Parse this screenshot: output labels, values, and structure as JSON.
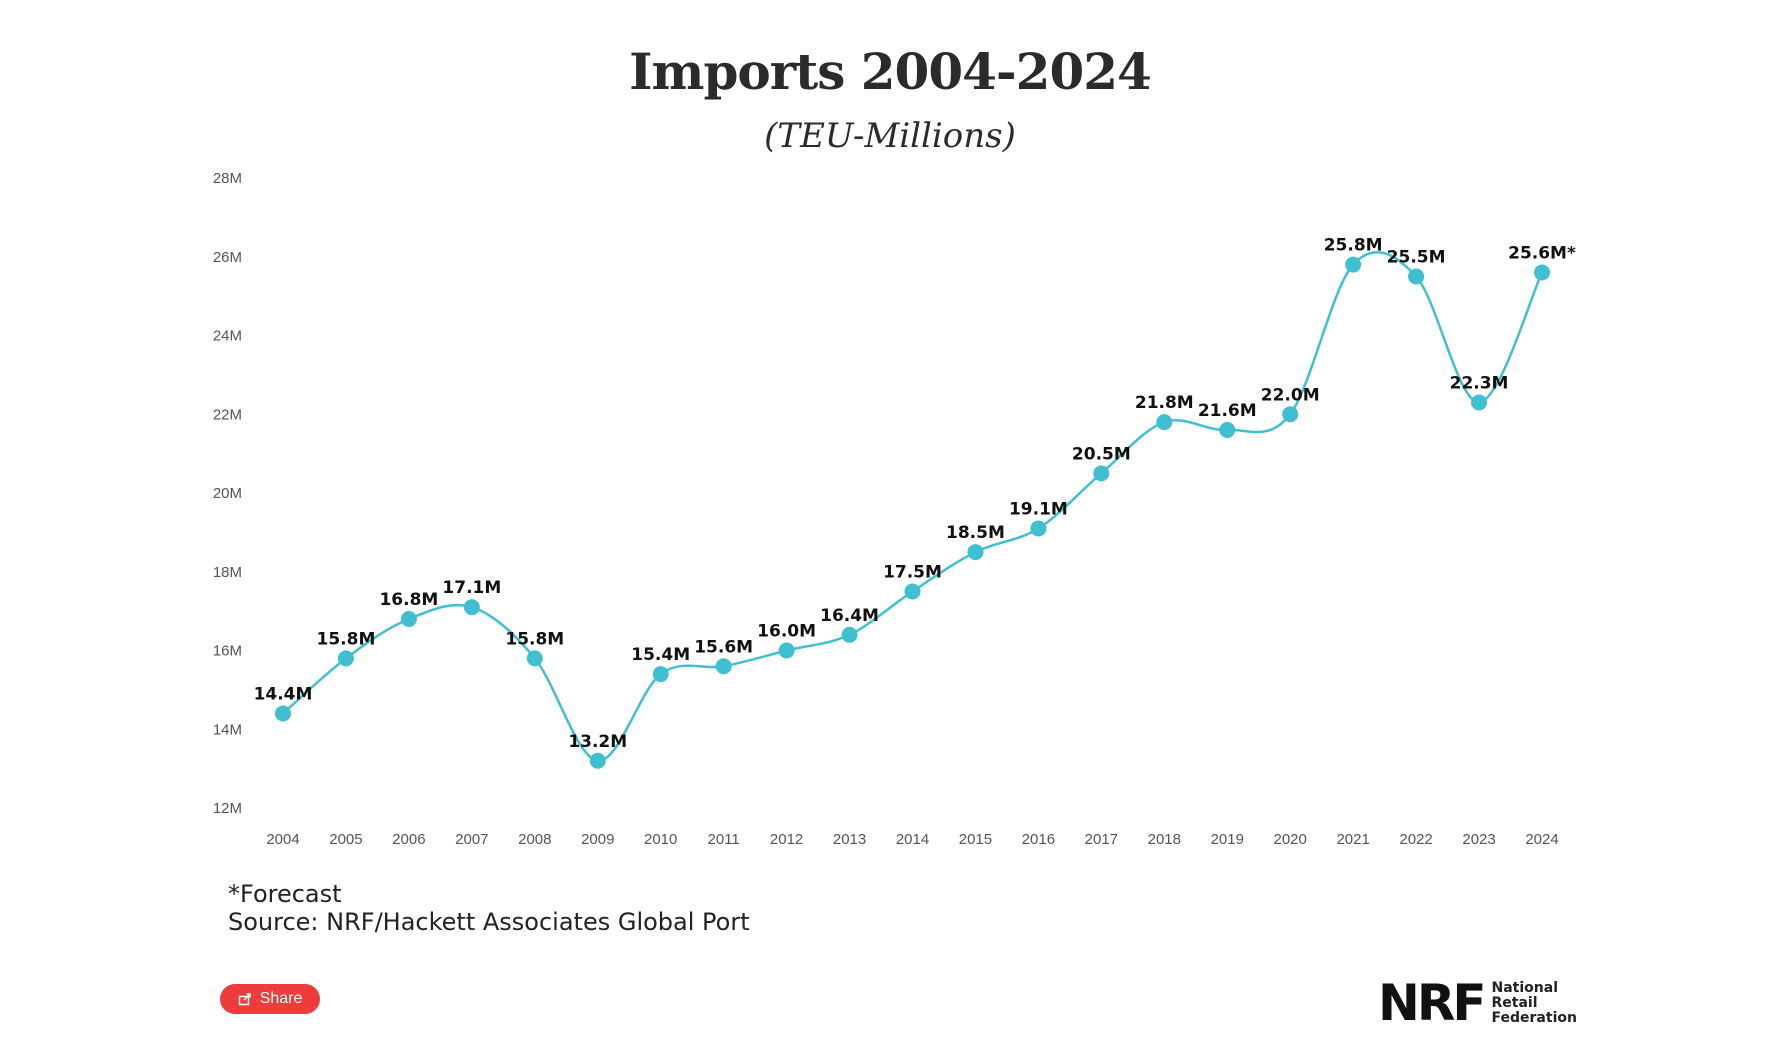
{
  "chart_data": {
    "type": "line",
    "title": "Imports 2004-2024",
    "subtitle": "(TEU-Millions)",
    "xlabel": "",
    "ylabel": "",
    "x": [
      "2004",
      "2005",
      "2006",
      "2007",
      "2008",
      "2009",
      "2010",
      "2011",
      "2012",
      "2013",
      "2014",
      "2015",
      "2016",
      "2017",
      "2018",
      "2019",
      "2020",
      "2021",
      "2022",
      "2023",
      "2024"
    ],
    "values": [
      14.4,
      15.8,
      16.8,
      17.1,
      15.8,
      13.2,
      15.4,
      15.6,
      16.0,
      16.4,
      17.5,
      18.5,
      19.1,
      20.5,
      21.8,
      21.6,
      22.0,
      25.8,
      25.5,
      22.3,
      25.6
    ],
    "data_labels": [
      "14.4M",
      "15.8M",
      "16.8M",
      "17.1M",
      "15.8M",
      "13.2M",
      "15.4M",
      "15.6M",
      "16.0M",
      "16.4M",
      "17.5M",
      "18.5M",
      "19.1M",
      "20.5M",
      "21.8M",
      "21.6M",
      "22.0M",
      "25.8M",
      "25.5M",
      "22.3M",
      "25.6M*"
    ],
    "ylim": [
      12,
      28
    ],
    "yticks": [
      12,
      14,
      16,
      18,
      20,
      22,
      24,
      26,
      28
    ],
    "ytick_labels": [
      "12M",
      "14M",
      "16M",
      "18M",
      "20M",
      "22M",
      "24M",
      "26M",
      "28M"
    ],
    "grid": false,
    "legend": "none",
    "line_color": "#3fbfcf",
    "point_color": "#3fbfcf"
  },
  "footnotes": {
    "forecast": "*Forecast",
    "source": "Source: NRF/Hackett Associates Global Port"
  },
  "share": {
    "label": "Share",
    "color": "#ee3b3b",
    "icon": "share-icon"
  },
  "logo": {
    "mark": "NRF",
    "line1": "National",
    "line2": "Retail",
    "line3": "Federation"
  }
}
